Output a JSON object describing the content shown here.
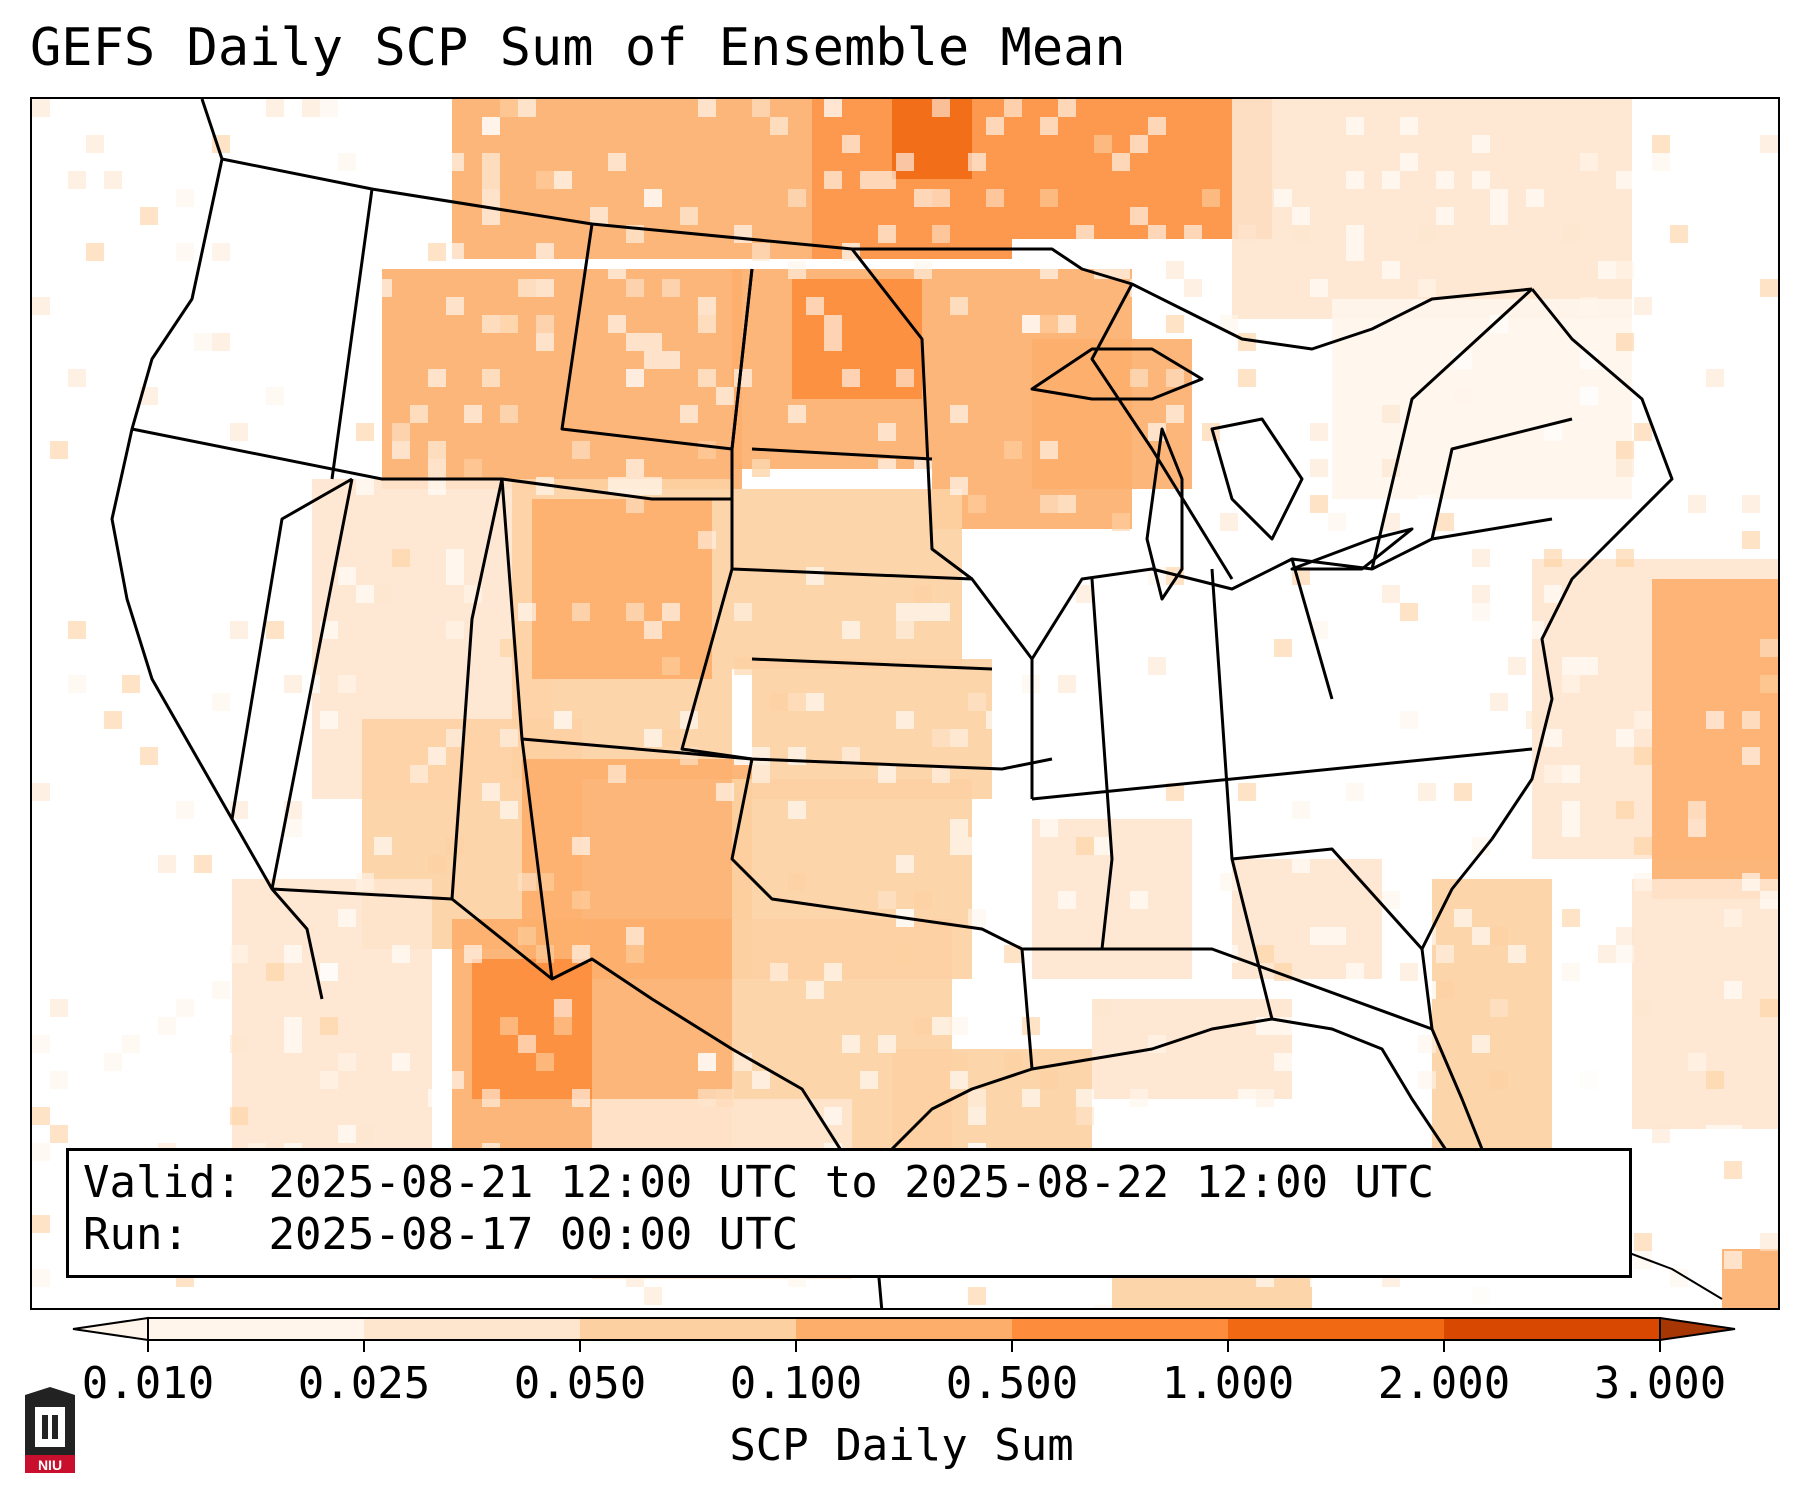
{
  "title": "GEFS Daily SCP Sum of Ensemble Mean",
  "info": {
    "valid_label": "Valid:",
    "valid_value": "2025-08-21 12:00 UTC to 2025-08-22 12:00 UTC",
    "run_label": "Run:",
    "run_value": "2025-08-17 00:00 UTC"
  },
  "colorbar": {
    "title": "SCP Daily Sum",
    "ticks": [
      "0.010",
      "0.025",
      "0.050",
      "0.100",
      "0.500",
      "1.000",
      "2.000",
      "3.000"
    ],
    "colors": [
      "#fff5eb",
      "#fee6ce",
      "#fdd0a2",
      "#fdae6b",
      "#fd8d3c",
      "#f16913",
      "#d94801",
      "#a63603"
    ],
    "extend": "both"
  },
  "map_colors": {
    "land": "#ffffff",
    "borders": "#000000",
    "ocean": "#ffffff"
  },
  "logo": {
    "text": "NIU",
    "color": "#c8102e"
  },
  "icons": [
    "niu-logo-icon"
  ]
}
